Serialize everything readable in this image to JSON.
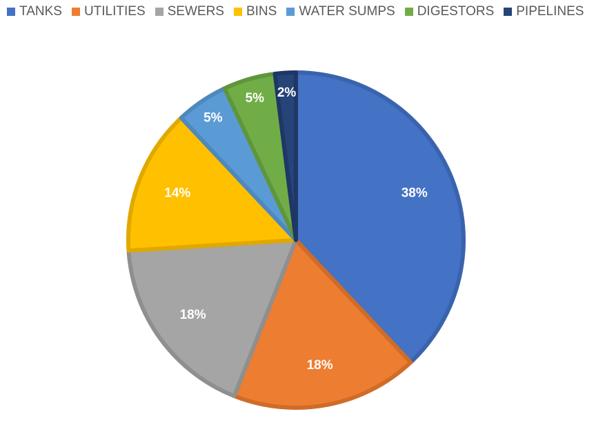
{
  "chart_data": {
    "type": "pie",
    "legend_position": "top-left",
    "categories": [
      "TANKS",
      "UTILITIES",
      "SEWERS",
      "BINS",
      "WATER SUMPS",
      "DIGESTORS",
      "PIPELINES"
    ],
    "values": [
      38,
      18,
      18,
      14,
      5,
      5,
      2
    ],
    "labels": [
      "38%",
      "18%",
      "18%",
      "14%",
      "5%",
      "5%",
      "2%"
    ],
    "colors": [
      "#4472C4",
      "#ED7D31",
      "#A5A5A5",
      "#FFC000",
      "#5B9BD5",
      "#70AD47",
      "#264478"
    ],
    "border_colors": [
      "#3A63AE",
      "#D06C28",
      "#8F8F8F",
      "#E0A800",
      "#4E88BD",
      "#5F963C",
      "#1E3766"
    ]
  }
}
